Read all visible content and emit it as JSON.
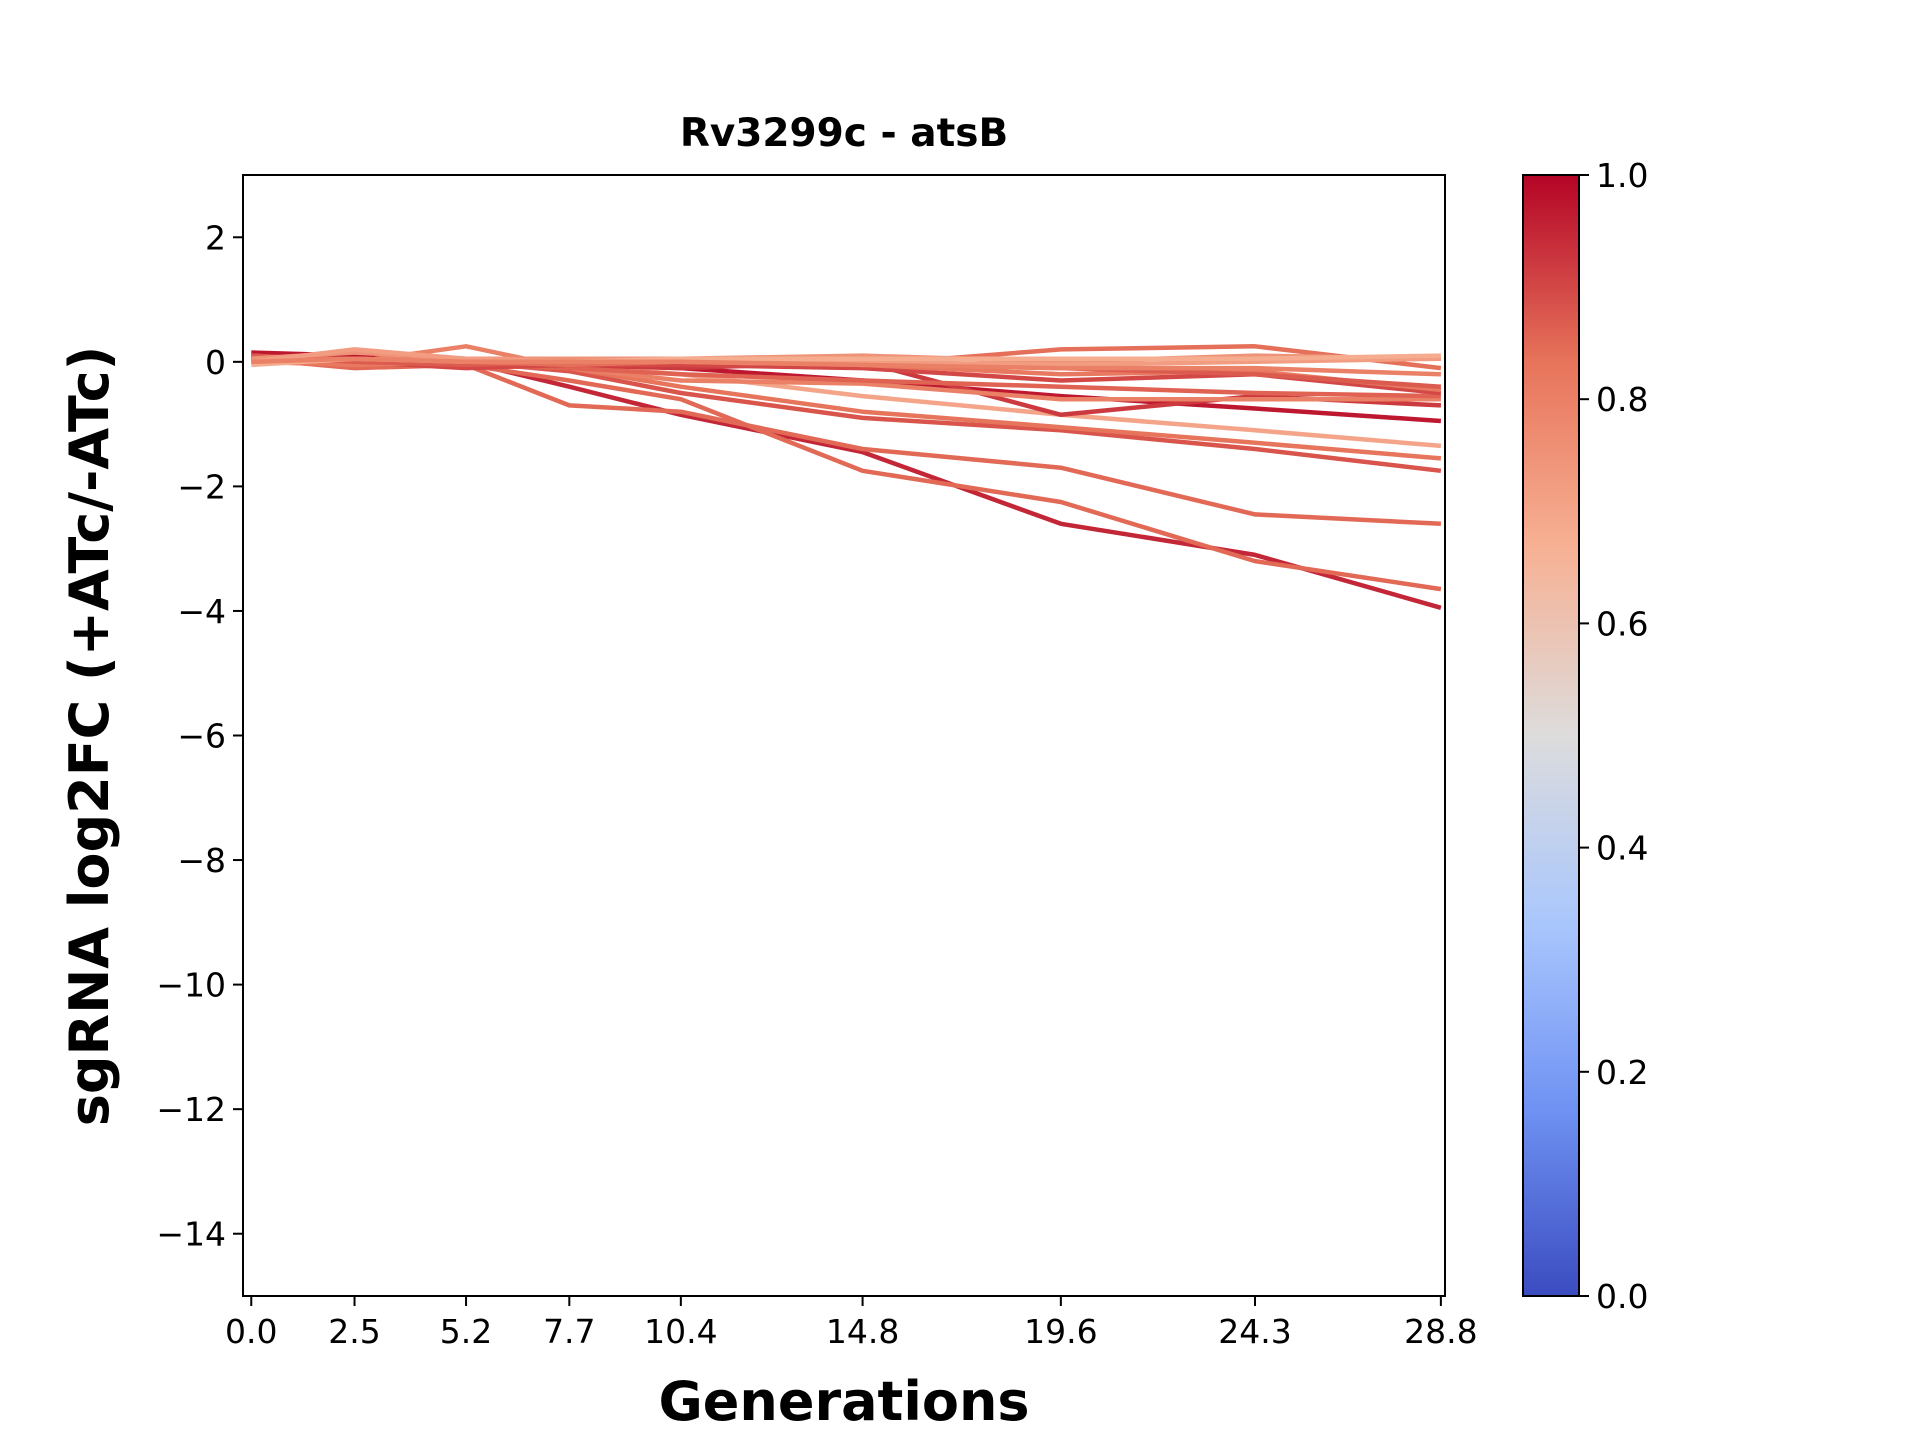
{
  "chart_data": {
    "type": "line",
    "title": "Rv3299c - atsB",
    "xlabel": "Generations",
    "ylabel": "sgRNA log2FC (+ATc/-ATc)",
    "x": [
      0.0,
      2.5,
      5.2,
      7.7,
      10.4,
      14.8,
      19.6,
      24.3,
      28.8
    ],
    "x_tick_labels": [
      "0.0",
      "2.5",
      "5.2",
      "7.7",
      "10.4",
      "14.8",
      "19.6",
      "24.3",
      "28.8"
    ],
    "xlim": [
      -0.2,
      28.9
    ],
    "ylim": [
      -15,
      3
    ],
    "y_ticks": [
      2,
      0,
      -2,
      -4,
      -6,
      -8,
      -10,
      -12,
      -14
    ],
    "y_tick_labels": [
      "2",
      "0",
      "−2",
      "−4",
      "−6",
      "−8",
      "−10",
      "−12",
      "−14"
    ],
    "grid": false,
    "colormap": "coolwarm",
    "colorbar": {
      "range": [
        0.0,
        1.0
      ],
      "ticks": [
        0.0,
        0.2,
        0.4,
        0.6,
        0.8,
        1.0
      ],
      "tick_labels": [
        "0.0",
        "0.2",
        "0.4",
        "0.6",
        "0.8",
        "1.0"
      ],
      "colors": [
        "#3b4cc0",
        "#6f92f3",
        "#aac7fd",
        "#dddcdc",
        "#f7b194",
        "#e7745b",
        "#b40426"
      ]
    },
    "series": [
      {
        "color_value": 0.95,
        "values": [
          0.1,
          0.0,
          0.0,
          -0.4,
          -0.85,
          -1.45,
          -2.6,
          -3.1,
          -3.95
        ]
      },
      {
        "color_value": 0.85,
        "values": [
          0.05,
          -0.1,
          -0.05,
          -0.3,
          -0.6,
          -1.75,
          -2.25,
          -3.2,
          -3.65
        ]
      },
      {
        "color_value": 0.85,
        "values": [
          0.1,
          0.05,
          -0.05,
          -0.7,
          -0.8,
          -1.4,
          -1.7,
          -2.45,
          -2.6
        ]
      },
      {
        "color_value": 0.88,
        "values": [
          0.1,
          0.05,
          0.0,
          -0.15,
          -0.5,
          -0.9,
          -1.1,
          -1.4,
          -1.75
        ]
      },
      {
        "color_value": 0.83,
        "values": [
          0.05,
          0.0,
          -0.05,
          -0.1,
          -0.4,
          -0.8,
          -1.05,
          -1.3,
          -1.55
        ]
      },
      {
        "color_value": 0.7,
        "values": [
          0.0,
          0.1,
          0.0,
          -0.05,
          -0.2,
          -0.55,
          -0.85,
          -1.1,
          -1.35
        ]
      },
      {
        "color_value": 0.97,
        "values": [
          0.15,
          0.1,
          0.0,
          -0.05,
          -0.1,
          -0.3,
          -0.55,
          -0.75,
          -0.95
        ]
      },
      {
        "color_value": 0.92,
        "values": [
          0.05,
          0.0,
          -0.05,
          -0.05,
          -0.1,
          0.0,
          -0.85,
          -0.55,
          -0.7
        ]
      },
      {
        "color_value": 0.8,
        "values": [
          0.1,
          0.0,
          0.25,
          -0.1,
          -0.3,
          -0.35,
          -0.6,
          -0.6,
          -0.6
        ]
      },
      {
        "color_value": 0.86,
        "values": [
          0.05,
          0.05,
          -0.05,
          -0.1,
          -0.2,
          -0.3,
          -0.4,
          -0.5,
          -0.55
        ]
      },
      {
        "color_value": 0.9,
        "values": [
          0.1,
          0.0,
          -0.1,
          -0.05,
          -0.05,
          -0.1,
          -0.3,
          -0.2,
          -0.5
        ]
      },
      {
        "color_value": 0.82,
        "values": [
          0.0,
          -0.05,
          0.0,
          0.0,
          0.0,
          -0.05,
          -0.2,
          -0.15,
          -0.45
        ]
      },
      {
        "color_value": 0.87,
        "values": [
          0.1,
          0.0,
          -0.05,
          0.0,
          0.0,
          -0.05,
          -0.1,
          -0.2,
          -0.4
        ]
      },
      {
        "color_value": 0.84,
        "values": [
          0.05,
          0.05,
          0.0,
          -0.05,
          0.0,
          -0.05,
          0.2,
          0.25,
          -0.1
        ]
      },
      {
        "color_value": 0.75,
        "values": [
          0.05,
          0.15,
          0.05,
          0.05,
          0.05,
          0.1,
          0.0,
          0.1,
          0.05
        ]
      },
      {
        "color_value": 0.72,
        "values": [
          0.0,
          0.2,
          0.05,
          0.0,
          0.0,
          0.0,
          -0.05,
          0.0,
          0.05
        ]
      },
      {
        "color_value": 0.68,
        "values": [
          -0.05,
          0.05,
          0.0,
          0.0,
          0.05,
          0.05,
          0.05,
          0.05,
          0.1
        ]
      },
      {
        "color_value": 0.8,
        "values": [
          0.0,
          0.05,
          0.0,
          0.0,
          0.0,
          -0.05,
          -0.1,
          -0.1,
          -0.2
        ]
      }
    ]
  }
}
